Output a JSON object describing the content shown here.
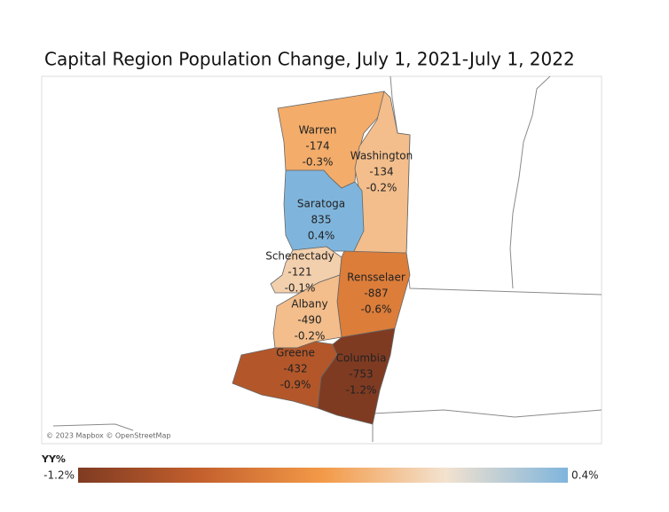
{
  "title": "Capital Region Population Change, July 1, 2021-July 1, 2022",
  "attribution": "© 2023 Mapbox © OpenStreetMap",
  "legend": {
    "title": "YY%",
    "min": {
      "value": -1.2,
      "label": "-1.2%"
    },
    "max": {
      "value": 0.4,
      "label": "0.4%"
    },
    "colors": [
      "#7f3b22",
      "#c4602d",
      "#f39a48",
      "#f3e2cf",
      "#7fb5dc"
    ]
  },
  "counties": [
    {
      "name": "Warren",
      "change": -174,
      "pct": {
        "value": -0.3,
        "label": "-0.3%"
      }
    },
    {
      "name": "Washington",
      "change": -134,
      "pct": {
        "value": -0.2,
        "label": "-0.2%"
      }
    },
    {
      "name": "Saratoga",
      "change": 835,
      "pct": {
        "value": 0.4,
        "label": "0.4%"
      }
    },
    {
      "name": "Schenectady",
      "change": -121,
      "pct": {
        "value": -0.1,
        "label": "-0.1%"
      }
    },
    {
      "name": "Rensselaer",
      "change": -887,
      "pct": {
        "value": -0.6,
        "label": "-0.6%"
      }
    },
    {
      "name": "Albany",
      "change": -490,
      "pct": {
        "value": -0.2,
        "label": "-0.2%"
      }
    },
    {
      "name": "Greene",
      "change": -432,
      "pct": {
        "value": -0.9,
        "label": "-0.9%"
      }
    },
    {
      "name": "Columbia",
      "change": -753,
      "pct": {
        "value": -1.2,
        "label": "-1.2%"
      }
    }
  ]
}
